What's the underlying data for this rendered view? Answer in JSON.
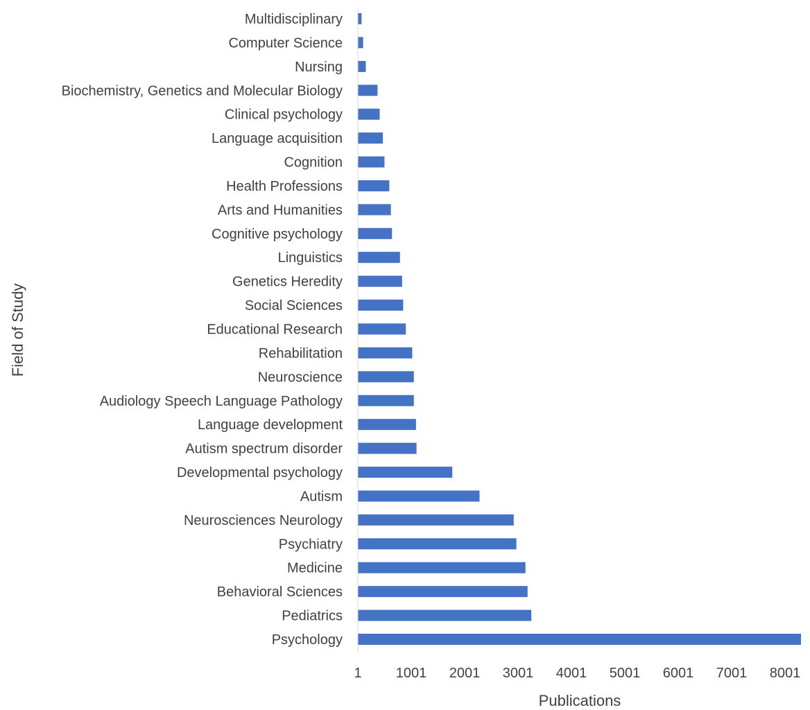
{
  "chart_data": {
    "type": "bar",
    "orientation": "horizontal",
    "xlabel": "Publications",
    "ylabel": "Field of Study",
    "xlim": [
      1,
      8300
    ],
    "xticks": [
      "1",
      "1001",
      "2001",
      "3001",
      "4001",
      "5001",
      "6001",
      "7001",
      "8001"
    ],
    "grid": false,
    "bar_color": "#4472C4",
    "categories": [
      "Multidisciplinary",
      "Computer Science",
      "Nursing",
      "Biochemistry, Genetics and Molecular Biology",
      "Clinical psychology",
      "Language acquisition",
      "Cognition",
      "Health Professions",
      "Arts and Humanities",
      "Cognitive psychology",
      "Linguistics",
      "Genetics Heredity",
      "Social Sciences",
      "Educational Research",
      "Rehabilitation",
      "Neuroscience",
      "Audiology Speech Language Pathology",
      "Language development",
      "Autism spectrum disorder",
      "Developmental psychology",
      "Autism",
      "Neurosciences Neurology",
      "Psychiatry",
      "Medicine",
      "Behavioral Sciences",
      "Pediatrics",
      "Psychology"
    ],
    "values": [
      70,
      100,
      150,
      370,
      410,
      470,
      500,
      590,
      620,
      640,
      790,
      830,
      850,
      900,
      1020,
      1050,
      1050,
      1090,
      1100,
      1770,
      2280,
      2920,
      2970,
      3140,
      3180,
      3250,
      8300
    ]
  }
}
